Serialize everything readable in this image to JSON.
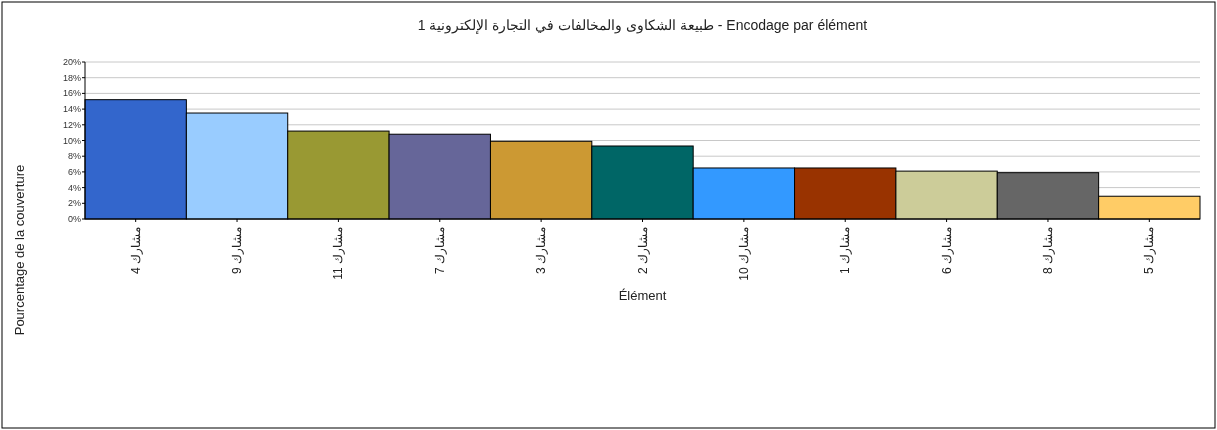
{
  "chart_data": {
    "type": "bar",
    "title": "طبيعة الشكاوى والمخالفات في التجارة الإلكترونية 1 - Encodage par élément",
    "xlabel": "Élément",
    "ylabel": "Pourcentage de la couverture",
    "categories": [
      "مشارك 4",
      "مشارك 9",
      "مشارك 11",
      "مشارك 7",
      "مشارك 3",
      "مشارك 2",
      "مشارك 10",
      "مشارك 1",
      "مشارك 6",
      "مشارك 8",
      "مشارك 5"
    ],
    "values": [
      15.2,
      13.5,
      11.2,
      10.8,
      9.9,
      9.3,
      6.5,
      6.5,
      6.1,
      5.9,
      2.9
    ],
    "colors": [
      "#3366cc",
      "#99ccff",
      "#999933",
      "#666699",
      "#cc9933",
      "#006666",
      "#3399ff",
      "#993300",
      "#cccc99",
      "#666666",
      "#ffcc66"
    ],
    "ylim": [
      0,
      20
    ],
    "yticks": [
      {
        "value": 0,
        "label": "0%"
      },
      {
        "value": 2,
        "label": "2%"
      },
      {
        "value": 4,
        "label": "4%"
      },
      {
        "value": 6,
        "label": "6%"
      },
      {
        "value": 8,
        "label": "8%"
      },
      {
        "value": 10,
        "label": "10%"
      },
      {
        "value": 12,
        "label": "12%"
      },
      {
        "value": 14,
        "label": "14%"
      },
      {
        "value": 16,
        "label": "16%"
      },
      {
        "value": 18,
        "label": "18%"
      },
      {
        "value": 20,
        "label": "20%"
      }
    ],
    "grid": "y"
  }
}
